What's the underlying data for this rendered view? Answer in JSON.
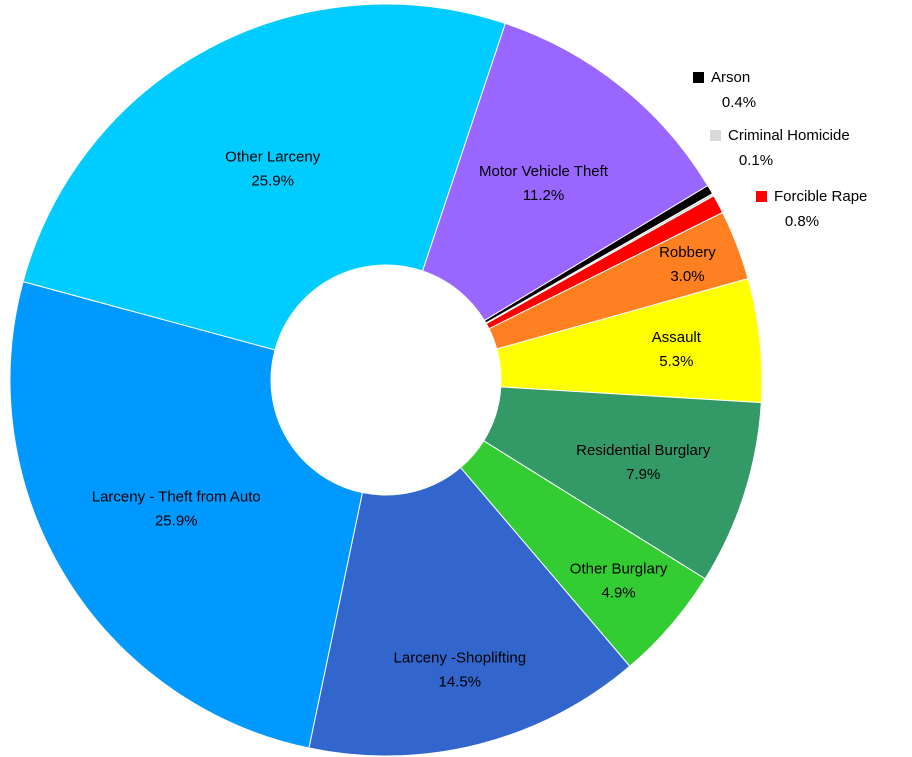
{
  "chart_data": {
    "type": "donut",
    "categories": [
      "Motor Vehicle Theft",
      "Arson",
      "Criminal Homicide",
      "Forcible Rape",
      "Robbery",
      "Assault",
      "Residential Burglary",
      "Other Burglary",
      "Larceny -Shoplifting",
      "Larceny - Theft from Auto",
      "Other Larceny"
    ],
    "values": [
      11.2,
      0.4,
      0.1,
      0.8,
      3.0,
      5.3,
      7.9,
      4.9,
      14.5,
      25.9,
      25.9
    ],
    "value_labels": [
      "11.2%",
      "0.4%",
      "0.1%",
      "0.8%",
      "3.0%",
      "5.3%",
      "7.9%",
      "4.9%",
      "14.5%",
      "25.9%",
      "25.9%"
    ],
    "colors": [
      "#9966ff",
      "#000000",
      "#d9d9d9",
      "#ff0000",
      "#ff8020",
      "#ffff00",
      "#339966",
      "#33cc33",
      "#3366cc",
      "#0099ff",
      "#00ccff"
    ]
  }
}
